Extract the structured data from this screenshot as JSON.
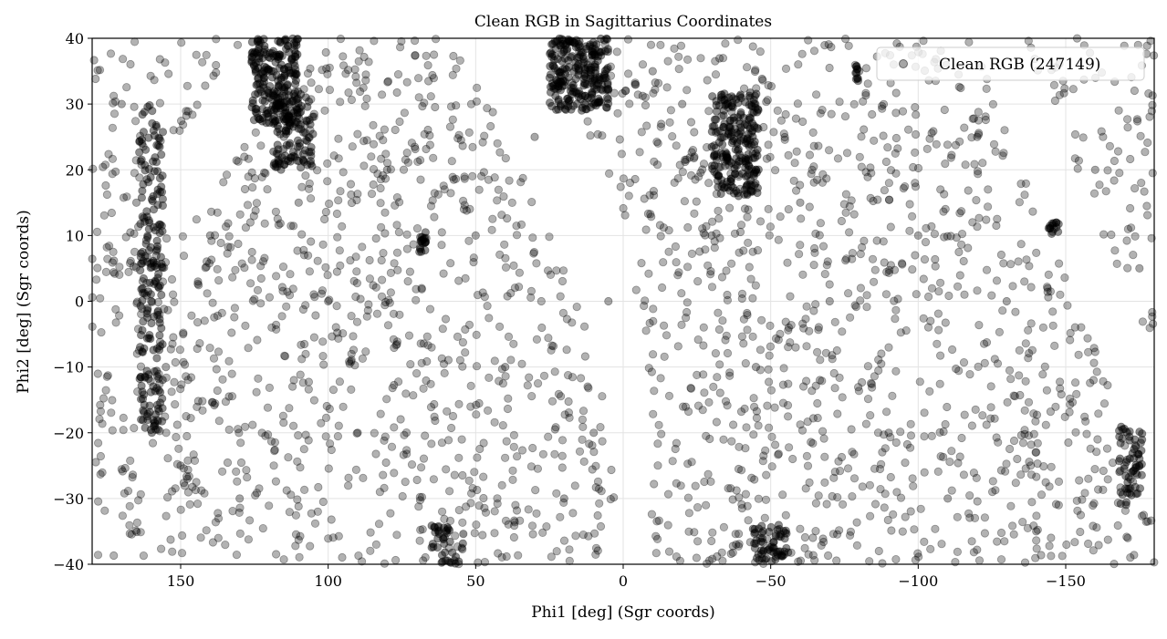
{
  "chart_data": {
    "type": "scatter",
    "title": "Clean RGB in Sagittarius Coordinates",
    "xlabel": "Phi1 [deg] (Sgr coords)",
    "ylabel": "Phi2 [deg] (Sgr coords)",
    "xlim": [
      180,
      -180
    ],
    "ylim": [
      -40,
      40
    ],
    "x_inverted": true,
    "grid": true,
    "legend_position": "top-right",
    "xticks": [
      150,
      100,
      50,
      0,
      -50,
      -100,
      -150
    ],
    "xtick_labels": [
      "150",
      "100",
      "50",
      "0",
      "−50",
      "−100",
      "−150"
    ],
    "yticks": [
      40,
      30,
      20,
      10,
      0,
      -10,
      -20,
      -30,
      -40
    ],
    "ytick_labels": [
      "40",
      "30",
      "20",
      "10",
      "0",
      "−10",
      "−20",
      "−30",
      "−40"
    ],
    "series": [
      {
        "name": "Clean RGB (247149)",
        "color": "#000000",
        "alpha": 0.3,
        "marker": "circle",
        "description": "Dense stellar distribution filling two broad sinusoidal bands with empty gaps; several compact dense clumps",
        "sample_points": [
          [
            170,
            30
          ],
          [
            165,
            15
          ],
          [
            160,
            0
          ],
          [
            155,
            -10
          ],
          [
            150,
            -25
          ],
          [
            140,
            10
          ],
          [
            130,
            -30
          ],
          [
            120,
            35
          ],
          [
            115,
            25
          ],
          [
            110,
            15
          ],
          [
            100,
            0
          ],
          [
            90,
            -20
          ],
          [
            80,
            20
          ],
          [
            67,
            9
          ],
          [
            60,
            -35
          ],
          [
            50,
            10
          ],
          [
            40,
            -10
          ],
          [
            30,
            25
          ],
          [
            20,
            -30
          ],
          [
            10,
            -20
          ],
          [
            5,
            0
          ],
          [
            -10,
            35
          ],
          [
            -20,
            30
          ],
          [
            -30,
            10
          ],
          [
            -40,
            25
          ],
          [
            -45,
            -10
          ],
          [
            -50,
            -38
          ],
          [
            -60,
            15
          ],
          [
            -70,
            0
          ],
          [
            -80,
            35
          ],
          [
            -90,
            -20
          ],
          [
            -100,
            10
          ],
          [
            -110,
            -30
          ],
          [
            -120,
            25
          ],
          [
            -130,
            0
          ],
          [
            -140,
            -35
          ],
          [
            -146,
            11
          ],
          [
            -160,
            20
          ],
          [
            -170,
            -25
          ],
          [
            -175,
            5
          ]
        ]
      }
    ]
  }
}
